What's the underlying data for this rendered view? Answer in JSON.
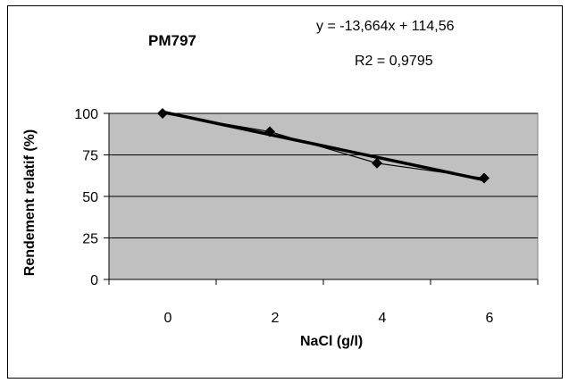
{
  "chart_data": {
    "type": "line",
    "title": "PM797",
    "xlabel": "NaCl (g/l)",
    "ylabel": "Rendement relatif (%)",
    "x_ticks": [
      "0",
      "2",
      "4",
      "6"
    ],
    "y_ticks": [
      "0",
      "25",
      "50",
      "75",
      "100"
    ],
    "ylim": [
      0,
      100
    ],
    "legend": "none",
    "grid": "horizontal",
    "series": [
      {
        "x": [
          0,
          2,
          4,
          6
        ],
        "values": [
          100,
          89,
          70,
          61
        ]
      }
    ],
    "trendline": {
      "type": "linear",
      "equation": "y = -13,664x + 114,56",
      "r2_text": "R2 = 0,9795",
      "slope": -13.664,
      "intercept": 114.56
    },
    "colors": {
      "plot_background": "#c0c0c0",
      "series_line": "#000000",
      "trendline": "#000000",
      "gridlines": "#000000"
    }
  }
}
